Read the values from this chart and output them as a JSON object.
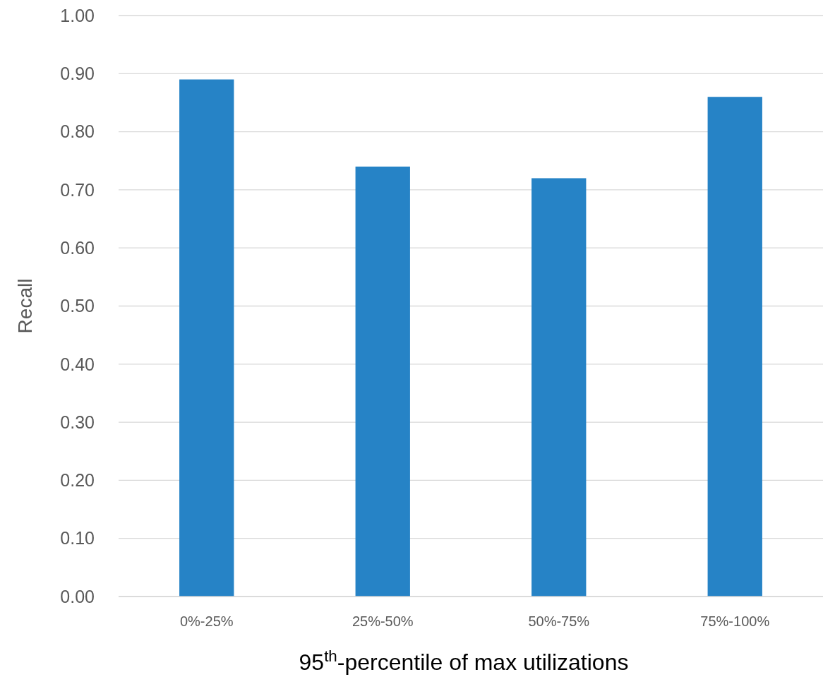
{
  "chart_data": {
    "type": "bar",
    "xlabel": "95$^{th}$-percentile of max utilizations",
    "ylabel": "Recall",
    "categories": [
      "0%-25%",
      "25%-50%",
      "50%-75%",
      "75%-100%"
    ],
    "values": [
      0.89,
      0.74,
      0.72,
      0.86
    ],
    "color": "#2683c6",
    "ylim": [
      0,
      1
    ],
    "yticks": [
      {
        "value": 0,
        "label": "0.00"
      },
      {
        "value": 0.1,
        "label": "0.10"
      },
      {
        "value": 0.2,
        "label": "0.20"
      },
      {
        "value": 0.3,
        "label": "0.30"
      },
      {
        "value": 0.4,
        "label": "0.40"
      },
      {
        "value": 0.5,
        "label": "0.50"
      },
      {
        "value": 0.6,
        "label": "0.60"
      },
      {
        "value": 0.7,
        "label": "0.70"
      },
      {
        "value": 0.8,
        "label": "0.80"
      },
      {
        "value": 0.9,
        "label": "0.90"
      },
      {
        "value": 1,
        "label": "1.00"
      }
    ],
    "grid": "y"
  }
}
